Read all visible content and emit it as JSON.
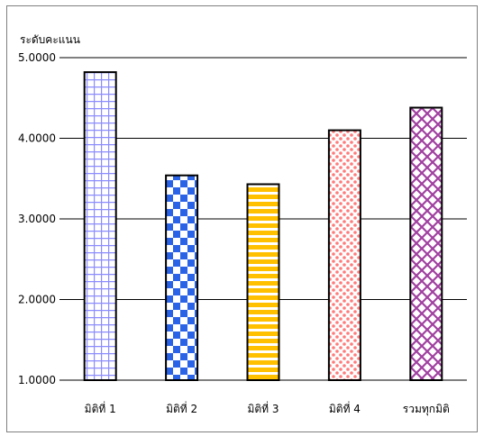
{
  "chart_data": {
    "type": "bar",
    "ylabel": "ระดับคะแนน",
    "categories": [
      "มิติที่ 1",
      "มิติที่ 2",
      "มิติที่ 3",
      "มิติที่ 4",
      "รวมทุกมิติ"
    ],
    "values": [
      4.82,
      3.54,
      3.43,
      4.1,
      4.38
    ],
    "ylim": [
      1.0,
      5.0
    ],
    "yticks": [
      "1.0000",
      "2.0000",
      "3.0000",
      "4.0000",
      "5.0000"
    ],
    "grid": true,
    "legend": "none",
    "colors": [
      "#8c8cff",
      "#2a63e6",
      "#ffc000",
      "#ff7b7b",
      "#a040a0"
    ]
  }
}
